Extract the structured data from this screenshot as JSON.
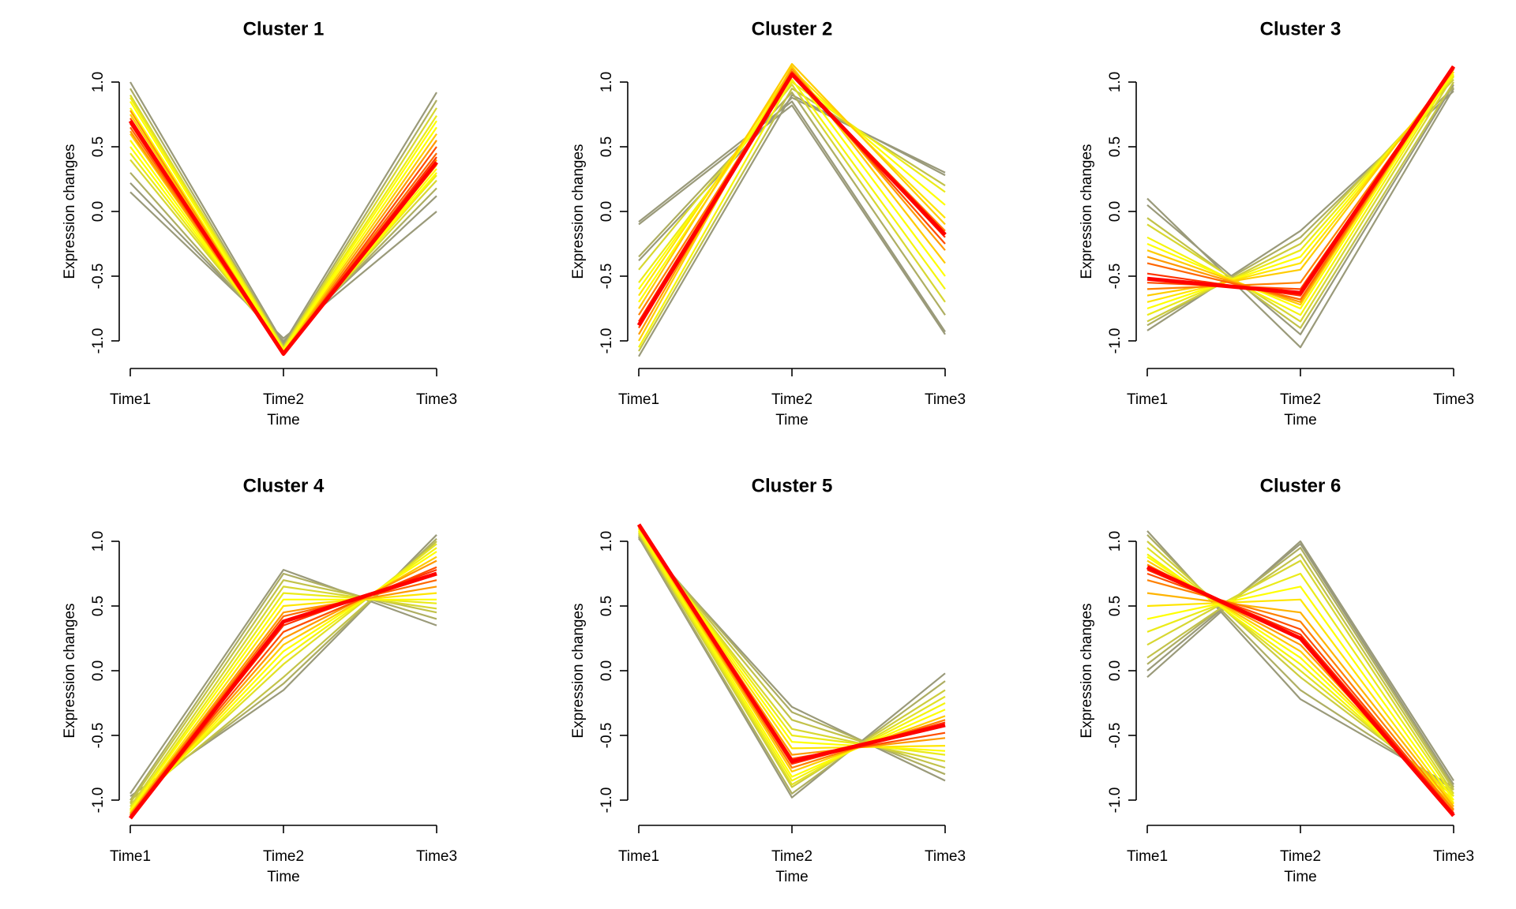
{
  "figure": {
    "layout": "2x3 grid",
    "background": "#ffffff"
  },
  "color_scale": {
    "low_membership": "#9a9a7a",
    "mid_membership": "#ffff00",
    "high_membership": "#ff0000"
  },
  "chart_data": [
    {
      "type": "line",
      "title": "Cluster 1",
      "xlabel": "Time",
      "ylabel": "Expression changes",
      "categories": [
        "Time1",
        "Time2",
        "Time3"
      ],
      "ylim": [
        -1.0,
        1.0
      ],
      "yticks": [
        -1.0,
        -0.5,
        0.0,
        0.5,
        1.0
      ],
      "ytick_labels": [
        "-1.0",
        "-0.5",
        "0.0",
        "0.5",
        "1.0"
      ],
      "grid": false,
      "series": [
        {
          "values": [
            0.15,
            -0.98,
            0.0
          ],
          "membership": 0.0
        },
        {
          "values": [
            0.22,
            -1.0,
            0.12
          ],
          "membership": 0.0
        },
        {
          "values": [
            1.0,
            -1.02,
            0.92
          ],
          "membership": 0.0
        },
        {
          "values": [
            0.3,
            -1.03,
            0.18
          ],
          "membership": 0.1
        },
        {
          "values": [
            0.95,
            -1.04,
            0.86
          ],
          "membership": 0.1
        },
        {
          "values": [
            0.4,
            -1.05,
            0.24
          ],
          "membership": 0.3
        },
        {
          "values": [
            0.9,
            -1.05,
            0.8
          ],
          "membership": 0.3
        },
        {
          "values": [
            0.45,
            -1.06,
            0.28
          ],
          "membership": 0.4
        },
        {
          "values": [
            0.88,
            -1.06,
            0.74
          ],
          "membership": 0.4
        },
        {
          "values": [
            0.5,
            -1.07,
            0.3
          ],
          "membership": 0.5
        },
        {
          "values": [
            0.85,
            -1.07,
            0.7
          ],
          "membership": 0.5
        },
        {
          "values": [
            0.55,
            -1.08,
            0.33
          ],
          "membership": 0.5
        },
        {
          "values": [
            0.8,
            -1.08,
            0.65
          ],
          "membership": 0.5
        },
        {
          "values": [
            0.6,
            -1.09,
            0.36
          ],
          "membership": 0.6
        },
        {
          "values": [
            0.75,
            -1.09,
            0.6
          ],
          "membership": 0.6
        },
        {
          "values": [
            0.62,
            -1.1,
            0.4
          ],
          "membership": 0.7
        },
        {
          "values": [
            0.78,
            -1.1,
            0.55
          ],
          "membership": 0.7
        },
        {
          "values": [
            0.65,
            -1.1,
            0.45
          ],
          "membership": 0.8
        },
        {
          "values": [
            0.72,
            -1.11,
            0.5
          ],
          "membership": 0.85
        },
        {
          "values": [
            0.68,
            -1.11,
            0.42
          ],
          "membership": 0.9
        },
        {
          "values": [
            0.7,
            -1.1,
            0.38
          ],
          "membership": 1.0,
          "highlight": true
        }
      ]
    },
    {
      "type": "line",
      "title": "Cluster 2",
      "xlabel": "Time",
      "ylabel": "Expression changes",
      "categories": [
        "Time1",
        "Time2",
        "Time3"
      ],
      "ylim": [
        -1.0,
        1.0
      ],
      "yticks": [
        -1.0,
        -0.5,
        0.0,
        0.5,
        1.0
      ],
      "ytick_labels": [
        "-1.0",
        "-0.5",
        "0.0",
        "0.5",
        "1.0"
      ],
      "grid": false,
      "series": [
        {
          "values": [
            -0.1,
            0.82,
            -0.95
          ],
          "membership": 0.0
        },
        {
          "values": [
            -0.08,
            0.85,
            -0.93
          ],
          "membership": 0.0
        },
        {
          "values": [
            -0.38,
            0.88,
            0.3
          ],
          "membership": 0.0
        },
        {
          "values": [
            -1.12,
            0.9,
            0.28
          ],
          "membership": 0.0
        },
        {
          "values": [
            -0.35,
            0.92,
            -0.8
          ],
          "membership": 0.1
        },
        {
          "values": [
            -1.08,
            0.95,
            0.2
          ],
          "membership": 0.2
        },
        {
          "values": [
            -0.45,
            0.98,
            -0.7
          ],
          "membership": 0.3
        },
        {
          "values": [
            -0.55,
            1.0,
            0.15
          ],
          "membership": 0.4
        },
        {
          "values": [
            -1.05,
            1.02,
            -0.6
          ],
          "membership": 0.45
        },
        {
          "values": [
            -0.6,
            1.05,
            0.05
          ],
          "membership": 0.5
        },
        {
          "values": [
            -0.7,
            1.08,
            -0.5
          ],
          "membership": 0.5
        },
        {
          "values": [
            -0.65,
            1.1,
            -0.05
          ],
          "membership": 0.55
        },
        {
          "values": [
            -1.0,
            1.12,
            -0.4
          ],
          "membership": 0.6
        },
        {
          "values": [
            -0.75,
            1.14,
            -0.1
          ],
          "membership": 0.6
        },
        {
          "values": [
            -0.95,
            1.1,
            -0.3
          ],
          "membership": 0.7
        },
        {
          "values": [
            -0.8,
            1.06,
            -0.15
          ],
          "membership": 0.75
        },
        {
          "values": [
            -0.9,
            1.08,
            -0.25
          ],
          "membership": 0.85
        },
        {
          "values": [
            -0.85,
            1.07,
            -0.2
          ],
          "membership": 0.9
        },
        {
          "values": [
            -0.88,
            1.06,
            -0.18
          ],
          "membership": 1.0,
          "highlight": true
        }
      ]
    },
    {
      "type": "line",
      "title": "Cluster 3",
      "xlabel": "Time",
      "ylabel": "Expression changes",
      "categories": [
        "Time1",
        "Time2",
        "Time3"
      ],
      "ylim": [
        -1.0,
        1.0
      ],
      "yticks": [
        -1.0,
        -0.5,
        0.0,
        0.5,
        1.0
      ],
      "ytick_labels": [
        "-1.0",
        "-0.5",
        "0.0",
        "0.5",
        "1.0"
      ],
      "grid": false,
      "series": [
        {
          "values": [
            0.1,
            -1.05,
            0.95
          ],
          "membership": 0.0
        },
        {
          "values": [
            -0.92,
            -0.15,
            0.93
          ],
          "membership": 0.0
        },
        {
          "values": [
            0.05,
            -0.95,
            0.98
          ],
          "membership": 0.0
        },
        {
          "values": [
            -0.88,
            -0.2,
            0.96
          ],
          "membership": 0.1
        },
        {
          "values": [
            -0.05,
            -0.9,
            1.0
          ],
          "membership": 0.2
        },
        {
          "values": [
            -0.85,
            -0.25,
            1.02
          ],
          "membership": 0.25
        },
        {
          "values": [
            -0.1,
            -0.85,
            1.05
          ],
          "membership": 0.3
        },
        {
          "values": [
            -0.8,
            -0.3,
            1.04
          ],
          "membership": 0.4
        },
        {
          "values": [
            -0.2,
            -0.8,
            1.08
          ],
          "membership": 0.45
        },
        {
          "values": [
            -0.75,
            -0.35,
            1.06
          ],
          "membership": 0.5
        },
        {
          "values": [
            -0.25,
            -0.75,
            1.1
          ],
          "membership": 0.5
        },
        {
          "values": [
            -0.7,
            -0.4,
            1.08
          ],
          "membership": 0.55
        },
        {
          "values": [
            -0.3,
            -0.72,
            1.12
          ],
          "membership": 0.6
        },
        {
          "values": [
            -0.65,
            -0.45,
            1.1
          ],
          "membership": 0.6
        },
        {
          "values": [
            -0.35,
            -0.7,
            1.12
          ],
          "membership": 0.7
        },
        {
          "values": [
            -0.6,
            -0.55,
            1.1
          ],
          "membership": 0.75
        },
        {
          "values": [
            -0.4,
            -0.68,
            1.12
          ],
          "membership": 0.8
        },
        {
          "values": [
            -0.55,
            -0.6,
            1.11
          ],
          "membership": 0.85
        },
        {
          "values": [
            -0.48,
            -0.65,
            1.12
          ],
          "membership": 0.9
        },
        {
          "values": [
            -0.52,
            -0.63,
            1.12
          ],
          "membership": 1.0,
          "highlight": true
        }
      ]
    },
    {
      "type": "line",
      "title": "Cluster 4",
      "xlabel": "Time",
      "ylabel": "Expression changes",
      "categories": [
        "Time1",
        "Time2",
        "Time3"
      ],
      "ylim": [
        -1.0,
        1.0
      ],
      "yticks": [
        -1.0,
        -0.5,
        0.0,
        0.5,
        1.0
      ],
      "ytick_labels": [
        "-1.0",
        "-0.5",
        "0.0",
        "0.5",
        "1.0"
      ],
      "grid": false,
      "series": [
        {
          "values": [
            -0.95,
            0.78,
            0.35
          ],
          "membership": 0.0
        },
        {
          "values": [
            -0.97,
            -0.15,
            1.05
          ],
          "membership": 0.0
        },
        {
          "values": [
            -1.0,
            0.75,
            0.4
          ],
          "membership": 0.1
        },
        {
          "values": [
            -1.0,
            -0.1,
            1.02
          ],
          "membership": 0.1
        },
        {
          "values": [
            -1.02,
            0.7,
            0.45
          ],
          "membership": 0.2
        },
        {
          "values": [
            -1.03,
            -0.05,
            1.0
          ],
          "membership": 0.2
        },
        {
          "values": [
            -1.05,
            0.65,
            0.48
          ],
          "membership": 0.3
        },
        {
          "values": [
            -1.05,
            0.05,
            0.98
          ],
          "membership": 0.35
        },
        {
          "values": [
            -1.07,
            0.6,
            0.52
          ],
          "membership": 0.4
        },
        {
          "values": [
            -1.08,
            0.1,
            0.95
          ],
          "membership": 0.45
        },
        {
          "values": [
            -1.08,
            0.55,
            0.55
          ],
          "membership": 0.5
        },
        {
          "values": [
            -1.09,
            0.15,
            0.92
          ],
          "membership": 0.5
        },
        {
          "values": [
            -1.1,
            0.5,
            0.6
          ],
          "membership": 0.55
        },
        {
          "values": [
            -1.1,
            0.2,
            0.88
          ],
          "membership": 0.6
        },
        {
          "values": [
            -1.11,
            0.45,
            0.65
          ],
          "membership": 0.7
        },
        {
          "values": [
            -1.11,
            0.25,
            0.85
          ],
          "membership": 0.7
        },
        {
          "values": [
            -1.12,
            0.42,
            0.7
          ],
          "membership": 0.8
        },
        {
          "values": [
            -1.12,
            0.3,
            0.8
          ],
          "membership": 0.85
        },
        {
          "values": [
            -1.13,
            0.35,
            0.78
          ],
          "membership": 0.9
        },
        {
          "values": [
            -1.14,
            0.38,
            0.75
          ],
          "membership": 1.0,
          "highlight": true
        }
      ]
    },
    {
      "type": "line",
      "title": "Cluster 5",
      "xlabel": "Time",
      "ylabel": "Expression changes",
      "categories": [
        "Time1",
        "Time2",
        "Time3"
      ],
      "ylim": [
        -1.0,
        1.0
      ],
      "yticks": [
        -1.0,
        -0.5,
        0.0,
        0.5,
        1.0
      ],
      "ytick_labels": [
        "-1.0",
        "-0.5",
        "0.0",
        "0.5",
        "1.0"
      ],
      "grid": false,
      "series": [
        {
          "values": [
            1.02,
            -0.28,
            -0.85
          ],
          "membership": 0.0
        },
        {
          "values": [
            1.03,
            -0.98,
            -0.02
          ],
          "membership": 0.0
        },
        {
          "values": [
            1.04,
            -0.32,
            -0.8
          ],
          "membership": 0.1
        },
        {
          "values": [
            1.04,
            -0.95,
            -0.08
          ],
          "membership": 0.1
        },
        {
          "values": [
            1.05,
            -0.38,
            -0.75
          ],
          "membership": 0.2
        },
        {
          "values": [
            1.06,
            -0.9,
            -0.15
          ],
          "membership": 0.25
        },
        {
          "values": [
            1.06,
            -0.45,
            -0.7
          ],
          "membership": 0.3
        },
        {
          "values": [
            1.07,
            -0.88,
            -0.2
          ],
          "membership": 0.35
        },
        {
          "values": [
            1.08,
            -0.5,
            -0.65
          ],
          "membership": 0.4
        },
        {
          "values": [
            1.08,
            -0.85,
            -0.25
          ],
          "membership": 0.45
        },
        {
          "values": [
            1.09,
            -0.55,
            -0.62
          ],
          "membership": 0.5
        },
        {
          "values": [
            1.1,
            -0.82,
            -0.3
          ],
          "membership": 0.5
        },
        {
          "values": [
            1.1,
            -0.6,
            -0.58
          ],
          "membership": 0.55
        },
        {
          "values": [
            1.11,
            -0.78,
            -0.35
          ],
          "membership": 0.6
        },
        {
          "values": [
            1.11,
            -0.65,
            -0.52
          ],
          "membership": 0.7
        },
        {
          "values": [
            1.12,
            -0.75,
            -0.38
          ],
          "membership": 0.75
        },
        {
          "values": [
            1.12,
            -0.68,
            -0.48
          ],
          "membership": 0.85
        },
        {
          "values": [
            1.12,
            -0.72,
            -0.4
          ],
          "membership": 0.9
        },
        {
          "values": [
            1.13,
            -0.7,
            -0.42
          ],
          "membership": 1.0,
          "highlight": true
        }
      ]
    },
    {
      "type": "line",
      "title": "Cluster 6",
      "xlabel": "Time",
      "ylabel": "Expression changes",
      "categories": [
        "Time1",
        "Time2",
        "Time3"
      ],
      "ylim": [
        -1.0,
        1.0
      ],
      "yticks": [
        -1.0,
        -0.5,
        0.0,
        0.5,
        1.0
      ],
      "ytick_labels": [
        "-1.0",
        "-0.5",
        "0.0",
        "0.5",
        "1.0"
      ],
      "grid": false,
      "series": [
        {
          "values": [
            -0.05,
            1.0,
            -0.85
          ],
          "membership": 0.0
        },
        {
          "values": [
            1.08,
            -0.22,
            -0.9
          ],
          "membership": 0.0
        },
        {
          "values": [
            0.0,
            0.98,
            -0.88
          ],
          "membership": 0.0
        },
        {
          "values": [
            0.05,
            0.95,
            -0.9
          ],
          "membership": 0.1
        },
        {
          "values": [
            1.05,
            -0.15,
            -0.92
          ],
          "membership": 0.1
        },
        {
          "values": [
            0.1,
            0.9,
            -0.92
          ],
          "membership": 0.2
        },
        {
          "values": [
            1.0,
            -0.05,
            -0.95
          ],
          "membership": 0.25
        },
        {
          "values": [
            0.2,
            0.85,
            -0.95
          ],
          "membership": 0.3
        },
        {
          "values": [
            0.95,
            0.0,
            -0.97
          ],
          "membership": 0.35
        },
        {
          "values": [
            0.3,
            0.75,
            -0.97
          ],
          "membership": 0.4
        },
        {
          "values": [
            0.9,
            0.05,
            -1.0
          ],
          "membership": 0.45
        },
        {
          "values": [
            0.4,
            0.65,
            -1.0
          ],
          "membership": 0.5
        },
        {
          "values": [
            0.88,
            0.1,
            -1.02
          ],
          "membership": 0.5
        },
        {
          "values": [
            0.5,
            0.55,
            -1.03
          ],
          "membership": 0.55
        },
        {
          "values": [
            0.85,
            0.15,
            -1.05
          ],
          "membership": 0.6
        },
        {
          "values": [
            0.6,
            0.45,
            -1.05
          ],
          "membership": 0.65
        },
        {
          "values": [
            0.82,
            0.2,
            -1.07
          ],
          "membership": 0.7
        },
        {
          "values": [
            0.7,
            0.38,
            -1.08
          ],
          "membership": 0.75
        },
        {
          "values": [
            0.75,
            0.32,
            -1.1
          ],
          "membership": 0.85
        },
        {
          "values": [
            0.78,
            0.28,
            -1.1
          ],
          "membership": 0.9
        },
        {
          "values": [
            0.8,
            0.25,
            -1.12
          ],
          "membership": 1.0,
          "highlight": true
        }
      ]
    }
  ]
}
